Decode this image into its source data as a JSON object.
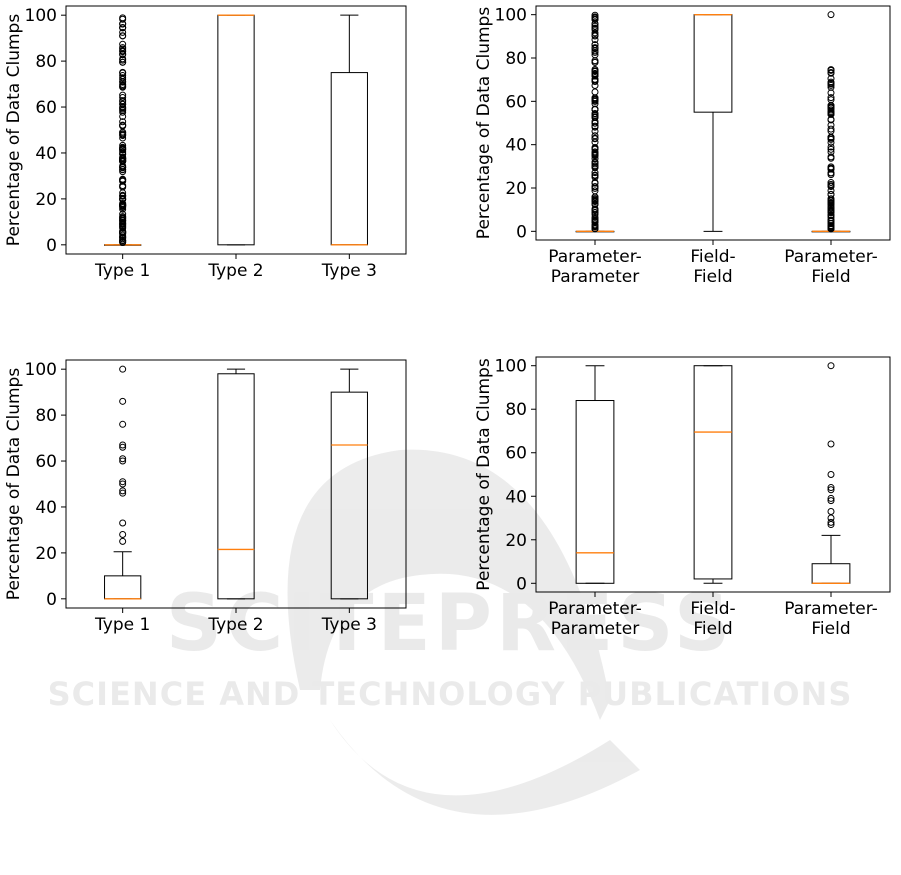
{
  "watermark": {
    "line1": "SCITEPRESS",
    "line2": "SCIENCE AND TECHNOLOGY PUBLICATIONS"
  },
  "chart_data": [
    {
      "type": "box",
      "ylabel": "Percentage of Data Clumps",
      "ylim": [
        -4,
        104
      ],
      "yticks": [
        0,
        20,
        40,
        60,
        80,
        100
      ],
      "categories": [
        [
          "Type 1"
        ],
        [
          "Type 2"
        ],
        [
          "Type 3"
        ]
      ],
      "boxes": [
        {
          "q1": 0,
          "median": 0,
          "q3": 0,
          "whisker_low": 0,
          "whisker_high": 0,
          "outliers": "dense 1–100"
        },
        {
          "q1": 0,
          "median": 100,
          "q3": 100,
          "whisker_low": 0,
          "whisker_high": 100,
          "outliers": []
        },
        {
          "q1": 0,
          "median": 0,
          "q3": 75,
          "whisker_low": 0,
          "whisker_high": 100,
          "outliers": []
        }
      ]
    },
    {
      "type": "box",
      "ylabel": "Percentage of Data Clumps",
      "ylim": [
        -4,
        104
      ],
      "yticks": [
        0,
        20,
        40,
        60,
        80,
        100
      ],
      "categories": [
        [
          "Parameter-",
          "Parameter"
        ],
        [
          "Field-",
          "Field"
        ],
        [
          "Parameter-",
          "Field"
        ]
      ],
      "boxes": [
        {
          "q1": 0,
          "median": 0,
          "q3": 0,
          "whisker_low": 0,
          "whisker_high": 0,
          "outliers": "dense 1–100"
        },
        {
          "q1": 55,
          "median": 100,
          "q3": 100,
          "whisker_low": 0,
          "whisker_high": 100,
          "outliers": []
        },
        {
          "q1": 0,
          "median": 0,
          "q3": 0,
          "whisker_low": 0,
          "whisker_high": 0,
          "outliers": "dense 1–75, 100"
        }
      ]
    },
    {
      "type": "box",
      "ylabel": "Percentage of Data Clumps",
      "ylim": [
        -4,
        104
      ],
      "yticks": [
        0,
        20,
        40,
        60,
        80,
        100
      ],
      "categories": [
        [
          "Type 1"
        ],
        [
          "Type 2"
        ],
        [
          "Type 3"
        ]
      ],
      "boxes": [
        {
          "q1": 0,
          "median": 0,
          "q3": 10,
          "whisker_low": 0,
          "whisker_high": 20.5,
          "outliers": [
            25,
            28,
            33,
            46,
            47,
            50,
            51,
            60,
            61,
            66,
            67,
            76,
            86,
            100
          ]
        },
        {
          "q1": 0,
          "median": 21.5,
          "q3": 98,
          "whisker_low": 0,
          "whisker_high": 100,
          "outliers": []
        },
        {
          "q1": 0,
          "median": 67,
          "q3": 90,
          "whisker_low": 0,
          "whisker_high": 100,
          "outliers": []
        }
      ]
    },
    {
      "type": "box",
      "ylabel": "Percentage of Data Clumps",
      "ylim": [
        -4,
        104
      ],
      "yticks": [
        0,
        20,
        40,
        60,
        80,
        100
      ],
      "categories": [
        [
          "Parameter-",
          "Parameter"
        ],
        [
          "Field-",
          "Field"
        ],
        [
          "Parameter-",
          "Field"
        ]
      ],
      "boxes": [
        {
          "q1": 0,
          "median": 14,
          "q3": 84,
          "whisker_low": 0,
          "whisker_high": 100,
          "outliers": []
        },
        {
          "q1": 2,
          "median": 69.5,
          "q3": 100,
          "whisker_low": 0,
          "whisker_high": 100,
          "outliers": []
        },
        {
          "q1": 0,
          "median": 0,
          "q3": 9,
          "whisker_low": 0,
          "whisker_high": 22,
          "outliers": [
            27,
            28,
            30,
            33,
            38,
            39,
            43,
            44,
            50,
            64,
            100
          ]
        }
      ]
    }
  ]
}
